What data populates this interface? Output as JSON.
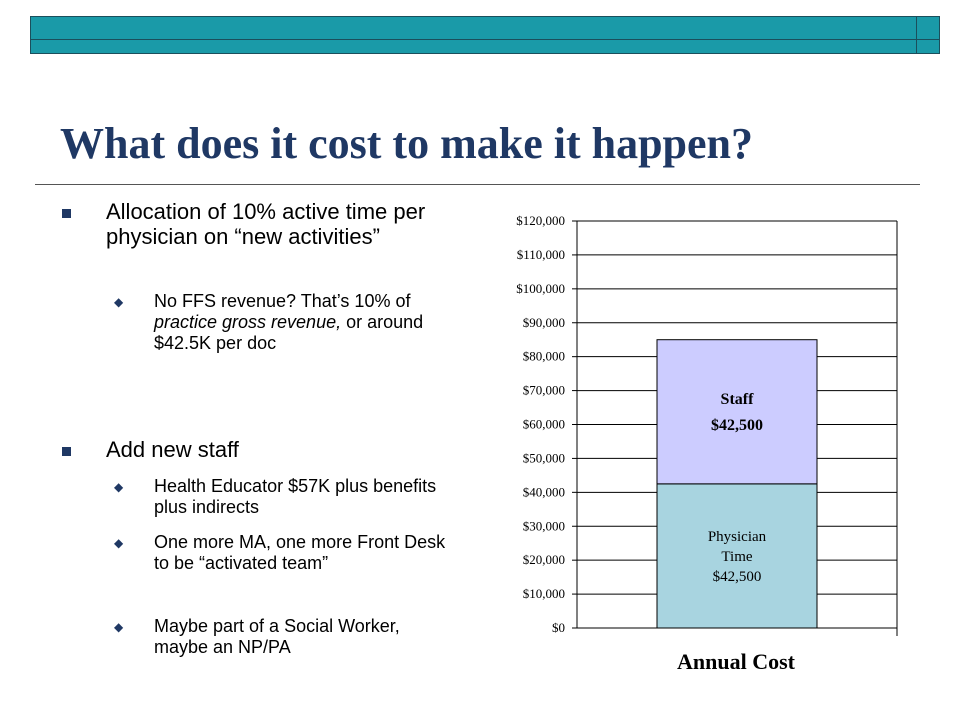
{
  "slide": {
    "title": "What does it cost to make it happen?"
  },
  "bullets": {
    "b1": {
      "text": "Allocation of 10% active time per physician on “new activities”",
      "sub1": {
        "part1": "No FFS revenue? That’s 10% of ",
        "italic": "practice gross revenue,",
        "part2": " or around $42.5K per doc"
      }
    },
    "b2": {
      "text": "Add new staff",
      "subs": [
        "Health Educator $57K plus benefits plus indirects",
        "One more MA, one more Front Desk to be “activated team”",
        "Maybe part of a Social Worker, maybe an NP/PA"
      ]
    }
  },
  "chart_data": {
    "type": "bar",
    "stacked": true,
    "categories": [
      "Annual Cost"
    ],
    "series": [
      {
        "name": "Physician Time",
        "values": [
          42500
        ],
        "label_lines": [
          "Physician",
          "Time",
          "$42,500"
        ],
        "color": "#a8d4e0"
      },
      {
        "name": "Staff",
        "values": [
          42500
        ],
        "label_lines": [
          "Staff",
          "$42,500"
        ],
        "color": "#ccccff"
      }
    ],
    "ylim": [
      0,
      120000
    ],
    "yticks": [
      "$0",
      "$10,000",
      "$20,000",
      "$30,000",
      "$40,000",
      "$50,000",
      "$60,000",
      "$70,000",
      "$80,000",
      "$90,000",
      "$100,000",
      "$110,000",
      "$120,000"
    ],
    "xlabel": "Annual Cost",
    "grid": true
  }
}
